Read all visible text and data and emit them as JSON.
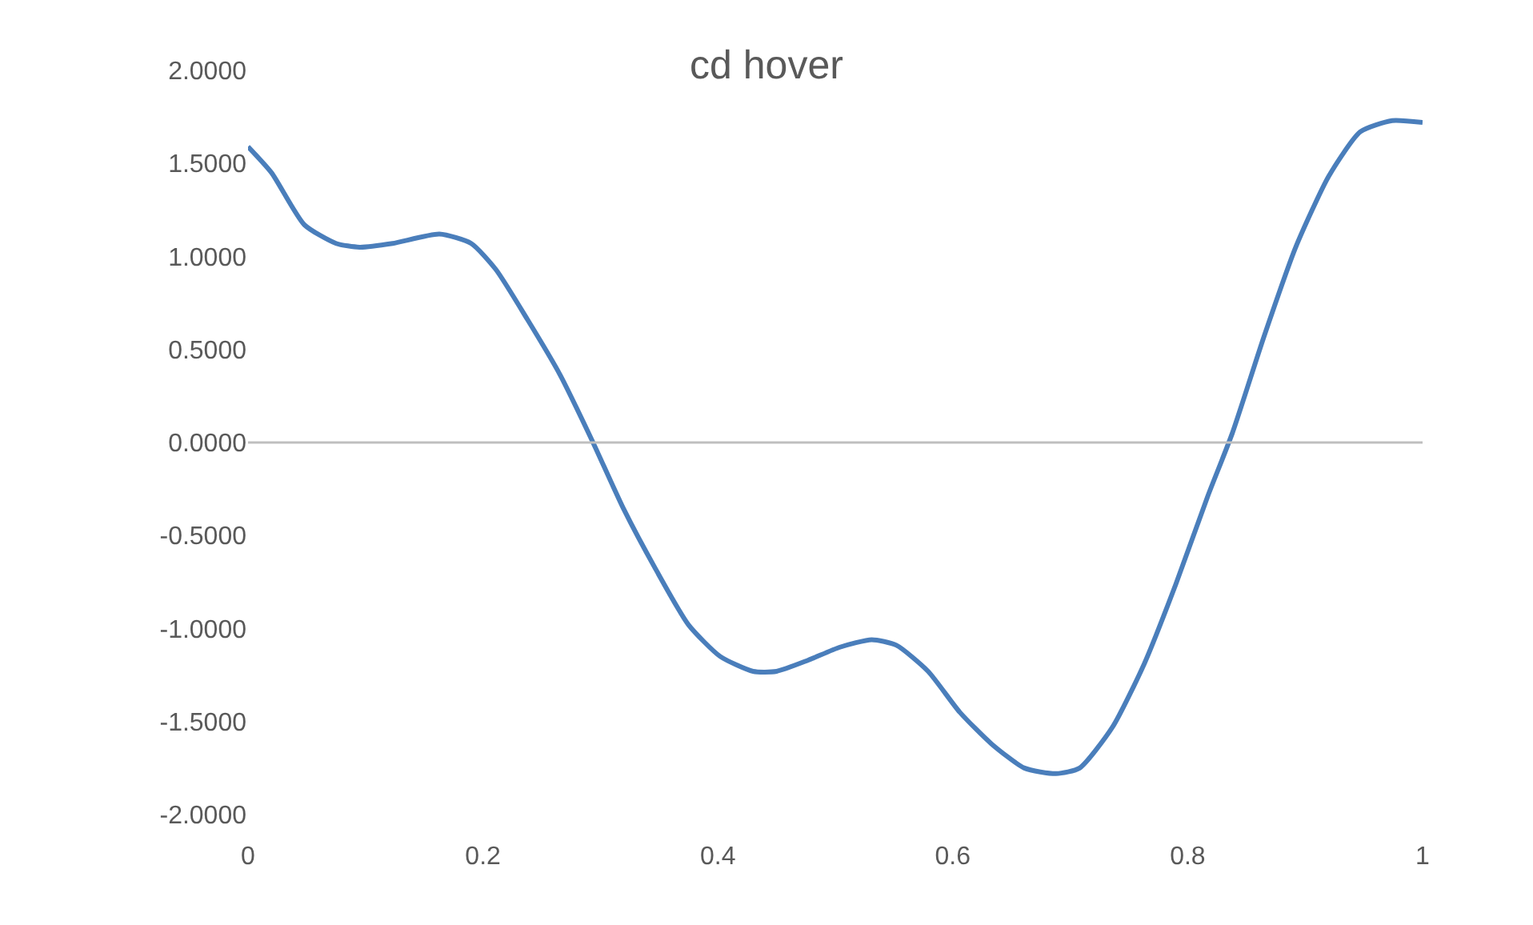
{
  "chart_data": {
    "type": "line",
    "title": "cd hover",
    "x": [
      0,
      0.02,
      0.048,
      0.075,
      0.095,
      0.123,
      0.163,
      0.19,
      0.211,
      0.238,
      0.266,
      0.293,
      0.32,
      0.347,
      0.375,
      0.402,
      0.43,
      0.45,
      0.477,
      0.504,
      0.531,
      0.552,
      0.579,
      0.606,
      0.633,
      0.661,
      0.688,
      0.708,
      0.736,
      0.763,
      0.79,
      0.817,
      0.838,
      0.865,
      0.892,
      0.92,
      0.947,
      0.974,
      1
    ],
    "series": [
      {
        "color": "#4a7ebb",
        "values": [
          1.59,
          1.45,
          1.17,
          1.07,
          1.05,
          1.07,
          1.12,
          1.07,
          0.93,
          0.66,
          0.36,
          0.01,
          -0.36,
          -0.68,
          -0.98,
          -1.15,
          -1.23,
          -1.23,
          -1.17,
          -1.1,
          -1.06,
          -1.09,
          -1.23,
          -1.45,
          -1.62,
          -1.75,
          -1.78,
          -1.75,
          -1.53,
          -1.19,
          -0.76,
          -0.29,
          0.05,
          0.57,
          1.05,
          1.43,
          1.67,
          1.73,
          1.72
        ]
      }
    ],
    "xlim": [
      0,
      1
    ],
    "xticks": [
      0,
      0.2,
      0.4,
      0.6,
      0.8,
      1
    ],
    "ylim": [
      -2,
      2
    ],
    "yticks": [
      {
        "value": 2,
        "label": "2.0000"
      },
      {
        "value": 1.5,
        "label": "1.5000"
      },
      {
        "value": 1,
        "label": "1.0000"
      },
      {
        "value": 0.5,
        "label": "0.5000"
      },
      {
        "value": 0,
        "label": "0.0000"
      },
      {
        "value": -0.5,
        "label": "-0.5000"
      },
      {
        "value": -1,
        "label": "-1.0000"
      },
      {
        "value": -1.5,
        "label": "-1.5000"
      },
      {
        "value": -2,
        "label": "-2.0000"
      }
    ],
    "ref_lines": [
      {
        "axis": "y",
        "value": 0,
        "color": "#bfbfbf"
      }
    ],
    "marker": "none",
    "line_style": "solid"
  }
}
